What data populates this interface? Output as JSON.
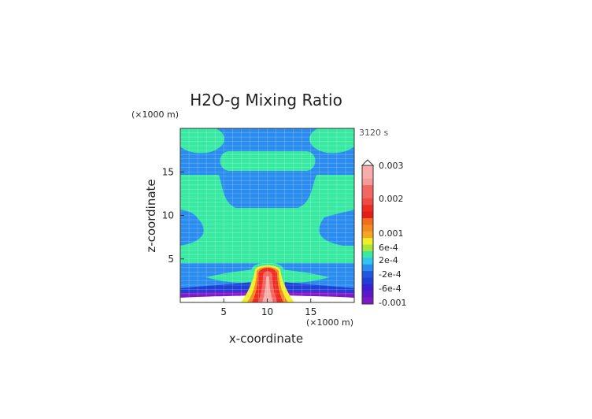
{
  "chart_data": {
    "type": "heatmap",
    "title": "H2O-g Mixing Ratio",
    "time_label": "3120 s",
    "xlabel": "x-coordinate",
    "ylabel": "z-coordinate",
    "x_unit": "(×1000 m)",
    "y_unit": "(×1000 m)",
    "xlim": [
      0,
      20
    ],
    "ylim": [
      0,
      20
    ],
    "x_ticks": [
      5,
      10,
      15
    ],
    "y_ticks": [
      5,
      10,
      15
    ],
    "grid": true,
    "colorbar": {
      "position": "right",
      "tick_labels": [
        {
          "label": "0.003",
          "value": 0.003
        },
        {
          "label": "0.002",
          "value": 0.002
        },
        {
          "label": "0.001",
          "value": 0.001
        },
        {
          "label": "6e-4",
          "value": 0.0006
        },
        {
          "label": "2e-4",
          "value": 0.0002
        },
        {
          "label": "-2e-4",
          "value": -0.0002
        },
        {
          "label": "-6e-4",
          "value": -0.0006
        },
        {
          "label": "-0.001",
          "value": -0.001
        }
      ]
    }
  }
}
